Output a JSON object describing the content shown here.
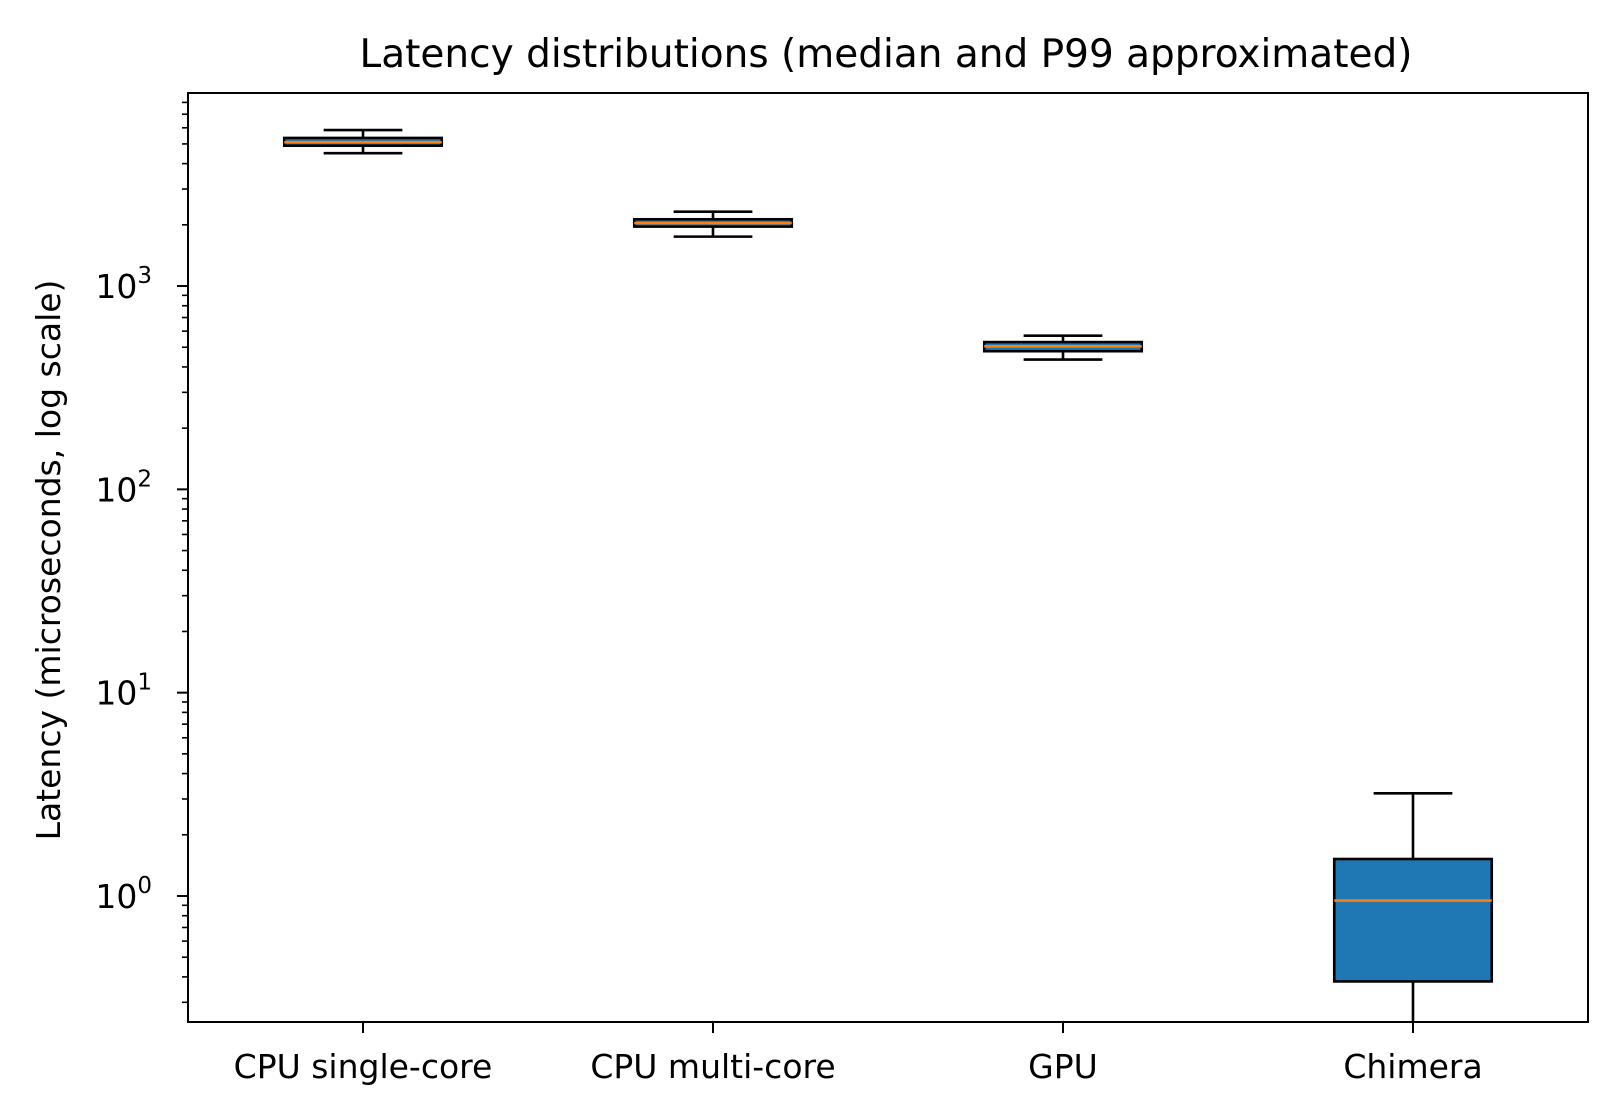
{
  "chart_data": {
    "type": "box",
    "title": "Latency distributions (median and P99 approximated)",
    "xlabel": "",
    "ylabel": "Latency (microseconds, log scale)",
    "yscale": "log",
    "ylim": [
      0.24,
      8900
    ],
    "y_ticks": [
      {
        "value": 1,
        "base": "10",
        "exp": "0"
      },
      {
        "value": 10,
        "base": "10",
        "exp": "1"
      },
      {
        "value": 100,
        "base": "10",
        "exp": "2"
      },
      {
        "value": 1000,
        "base": "10",
        "exp": "3"
      }
    ],
    "grid": false,
    "categories": [
      "CPU single-core",
      "CPU multi-core",
      "GPU",
      "Chimera"
    ],
    "boxes": [
      {
        "label": "CPU single-core",
        "whisker_low": 4500,
        "q1": 4900,
        "median": 5100,
        "q3": 5350,
        "whisker_high": 5850
      },
      {
        "label": "CPU multi-core",
        "whisker_low": 1750,
        "q1": 1960,
        "median": 2040,
        "q3": 2130,
        "whisker_high": 2320
      },
      {
        "label": "GPU",
        "whisker_low": 435,
        "q1": 478,
        "median": 505,
        "q3": 530,
        "whisker_high": 570
      },
      {
        "label": "Chimera",
        "whisker_low": 0.24,
        "q1": 0.38,
        "median": 0.95,
        "q3": 1.52,
        "whisker_high": 3.2
      }
    ],
    "colors": {
      "box_fill": "#1f77b4",
      "median": "#ff7f0e",
      "edge": "#000000"
    }
  }
}
